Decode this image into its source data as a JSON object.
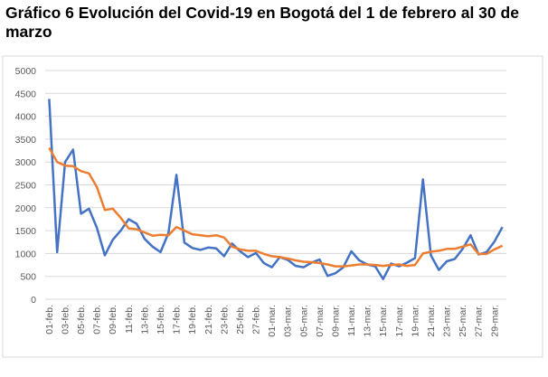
{
  "chart_data": {
    "type": "line",
    "title": "Gráfico 6 Evolución del Covid-19 en Bogotá del 1 de febrero al 30 de marzo",
    "categories": [
      "01-feb.",
      null,
      "03-feb.",
      null,
      "05-feb.",
      null,
      "07-feb.",
      null,
      "09-feb.",
      null,
      "11-feb.",
      null,
      "13-feb.",
      null,
      "15-feb.",
      null,
      "17-feb.",
      null,
      "19-feb.",
      null,
      "21-feb.",
      null,
      "23-feb.",
      null,
      "25-feb.",
      null,
      "27-feb.",
      null,
      "01-mar.",
      null,
      "03-mar.",
      null,
      "05-mar.",
      null,
      "07-mar.",
      null,
      "09-mar.",
      null,
      "11-mar.",
      null,
      "13-mar.",
      null,
      "15-mar.",
      null,
      "17-mar.",
      null,
      "19-mar.",
      null,
      "21-mar.",
      null,
      "23-mar.",
      null,
      "25-mar.",
      null,
      "27-mar.",
      null,
      "29-mar.",
      null
    ],
    "series": [
      {
        "color": "#4472c4",
        "values": [
          4380,
          1030,
          3000,
          3270,
          1870,
          1980,
          1560,
          960,
          1300,
          1500,
          1750,
          1650,
          1320,
          1150,
          1030,
          1450,
          2720,
          1240,
          1120,
          1080,
          1130,
          1110,
          940,
          1220,
          1050,
          920,
          1010,
          790,
          700,
          920,
          860,
          730,
          700,
          800,
          870,
          510,
          570,
          700,
          1050,
          850,
          760,
          720,
          440,
          780,
          720,
          800,
          900,
          2620,
          960,
          640,
          830,
          880,
          1100,
          1400,
          980,
          1030,
          1260,
          1580
        ]
      },
      {
        "color": "#ed7d31",
        "values": [
          3310,
          3000,
          2920,
          2910,
          2800,
          2750,
          2450,
          1950,
          1980,
          1780,
          1550,
          1530,
          1460,
          1390,
          1410,
          1400,
          1580,
          1500,
          1420,
          1400,
          1380,
          1400,
          1350,
          1150,
          1090,
          1060,
          1060,
          990,
          940,
          920,
          890,
          850,
          820,
          810,
          790,
          760,
          720,
          720,
          740,
          760,
          760,
          750,
          730,
          750,
          760,
          730,
          750,
          1000,
          1040,
          1060,
          1100,
          1100,
          1150,
          1200,
          990,
          990,
          1090,
          1170
        ]
      }
    ],
    "ylim": [
      0,
      5000
    ],
    "yticks": [
      0,
      500,
      1000,
      1500,
      2000,
      2500,
      3000,
      3500,
      4000,
      4500,
      5000
    ],
    "grid": true
  }
}
